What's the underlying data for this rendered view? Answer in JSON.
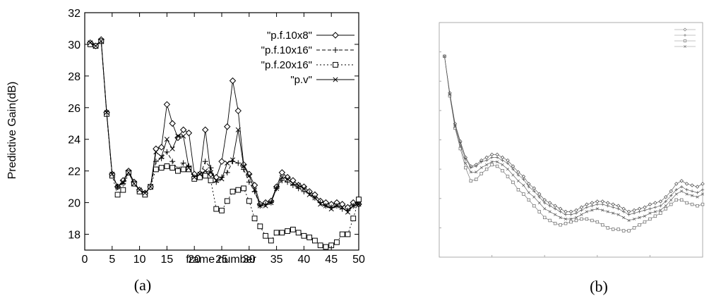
{
  "charts": [
    {
      "caption": "(a)",
      "chart_data": {
        "type": "line",
        "xlabel": "frame number",
        "ylabel": "Predictive Gain(dB)",
        "xlim": [
          0,
          50
        ],
        "ylim": [
          17,
          32
        ],
        "xticks": [
          "0",
          "5",
          "10",
          "15",
          "20",
          "25",
          "30",
          "35",
          "40",
          "45",
          "50"
        ],
        "yticks": [
          "18",
          "20",
          "22",
          "24",
          "26",
          "28",
          "30",
          "32"
        ],
        "legend": "top-right",
        "series": [
          {
            "name": "\"p.f.10x8\"",
            "marker": "diamond",
            "x": [
              1,
              2,
              3,
              4,
              5,
              6,
              7,
              8,
              9,
              10,
              11,
              12,
              13,
              14,
              15,
              16,
              17,
              18,
              19,
              20,
              21,
              22,
              23,
              24,
              25,
              26,
              27,
              28,
              29,
              30,
              31,
              32,
              33,
              34,
              35,
              36,
              37,
              38,
              39,
              40,
              41,
              42,
              43,
              44,
              45,
              46,
              47,
              48,
              49,
              50
            ],
            "y": [
              30.1,
              29.9,
              30.3,
              25.7,
              21.8,
              21.0,
              21.4,
              22.0,
              21.3,
              20.8,
              20.6,
              21.0,
              23.4,
              23.5,
              26.2,
              25.0,
              24.1,
              24.6,
              24.4,
              21.8,
              21.8,
              24.6,
              21.8,
              21.6,
              22.6,
              24.8,
              27.7,
              25.8,
              22.4,
              21.8,
              21.1,
              19.9,
              20.0,
              20.1,
              21.0,
              21.9,
              21.6,
              21.4,
              21.1,
              21.0,
              20.7,
              20.5,
              20.1,
              20.0,
              19.9,
              20.0,
              19.9,
              19.7,
              20.0,
              19.9
            ]
          },
          {
            "name": "\"p.f.10x16\"",
            "marker": "plus",
            "x": [
              1,
              2,
              3,
              4,
              5,
              6,
              7,
              8,
              9,
              10,
              11,
              12,
              13,
              14,
              15,
              16,
              17,
              18,
              19,
              20,
              21,
              22,
              23,
              24,
              25,
              26,
              27,
              28,
              29,
              30,
              31,
              32,
              33,
              34,
              35,
              36,
              37,
              38,
              39,
              40,
              41,
              42,
              43,
              44,
              45,
              46,
              47,
              48,
              49,
              50
            ],
            "y": [
              30.0,
              29.9,
              30.2,
              25.6,
              21.7,
              21.0,
              21.2,
              21.9,
              21.2,
              20.7,
              20.6,
              21.0,
              22.6,
              22.8,
              23.2,
              22.6,
              22.1,
              22.5,
              22.3,
              21.6,
              21.7,
              22.6,
              22.2,
              21.3,
              21.6,
              21.9,
              22.6,
              22.5,
              22.1,
              21.3,
              20.7,
              19.8,
              19.9,
              20.0,
              20.9,
              21.4,
              21.3,
              21.1,
              20.9,
              20.7,
              20.6,
              20.3,
              20.0,
              19.8,
              19.7,
              19.8,
              19.6,
              19.5,
              19.8,
              19.9
            ]
          },
          {
            "name": "\"p.f.20x16\"",
            "marker": "square",
            "x": [
              1,
              2,
              3,
              4,
              5,
              6,
              7,
              8,
              9,
              10,
              11,
              12,
              13,
              14,
              15,
              16,
              17,
              18,
              19,
              20,
              21,
              22,
              23,
              24,
              25,
              26,
              27,
              28,
              29,
              30,
              31,
              32,
              33,
              34,
              35,
              36,
              37,
              38,
              39,
              40,
              41,
              42,
              43,
              44,
              45,
              46,
              47,
              48,
              49,
              50
            ],
            "y": [
              30.0,
              29.9,
              30.2,
              25.6,
              21.7,
              20.5,
              20.8,
              21.9,
              21.2,
              20.7,
              20.5,
              21.0,
              22.1,
              22.2,
              22.3,
              22.2,
              22.0,
              22.1,
              22.1,
              21.5,
              21.6,
              21.7,
              21.4,
              19.6,
              19.5,
              20.1,
              20.7,
              20.8,
              20.9,
              20.1,
              19.0,
              18.5,
              17.9,
              17.6,
              18.1,
              18.1,
              18.2,
              18.3,
              18.1,
              17.9,
              17.8,
              17.6,
              17.3,
              17.2,
              17.3,
              17.5,
              18.0,
              18.0,
              19.0,
              20.2
            ]
          },
          {
            "name": "\"p.v\"",
            "marker": "cross",
            "x": [
              1,
              2,
              3,
              4,
              5,
              6,
              7,
              8,
              9,
              10,
              11,
              12,
              13,
              14,
              15,
              16,
              17,
              18,
              19,
              20,
              21,
              22,
              23,
              24,
              25,
              26,
              27,
              28,
              29,
              30,
              31,
              32,
              33,
              34,
              35,
              36,
              37,
              38,
              39,
              40,
              41,
              42,
              43,
              44,
              45,
              46,
              47,
              48,
              49,
              50
            ],
            "y": [
              30.1,
              29.9,
              30.2,
              25.7,
              21.8,
              21.0,
              21.3,
              21.9,
              21.2,
              20.8,
              20.6,
              21.0,
              23.2,
              22.9,
              24.0,
              23.4,
              24.2,
              24.2,
              22.2,
              21.6,
              21.8,
              22.0,
              21.9,
              21.4,
              21.5,
              22.5,
              22.7,
              24.6,
              22.3,
              21.7,
              20.8,
              19.8,
              19.8,
              20.0,
              20.9,
              21.6,
              21.5,
              21.2,
              21.1,
              20.9,
              20.5,
              20.3,
              19.9,
              19.8,
              19.6,
              19.8,
              19.7,
              19.4,
              19.8,
              19.9
            ]
          }
        ]
      }
    },
    {
      "caption": "(b)",
      "chart_data": {
        "type": "line",
        "xlim": [
          0,
          50
        ],
        "ylim": [
          16,
          32
        ],
        "legend": "top-right",
        "series": [
          {
            "marker": "diamond",
            "x": [
              1,
              2,
              3,
              4,
              5,
              6,
              7,
              8,
              9,
              10,
              11,
              12,
              13,
              14,
              15,
              16,
              17,
              18,
              19,
              20,
              21,
              22,
              23,
              24,
              25,
              26,
              27,
              28,
              29,
              30,
              31,
              32,
              33,
              34,
              35,
              36,
              37,
              38,
              39,
              40,
              41,
              42,
              43,
              44,
              45,
              46,
              47,
              48,
              49,
              50
            ],
            "y": [
              29.7,
              27.2,
              25.1,
              23.9,
              22.8,
              22.2,
              22.3,
              22.6,
              22.8,
              23.0,
              23.0,
              22.8,
              22.6,
              22.2,
              21.8,
              21.5,
              21.0,
              20.7,
              20.3,
              19.9,
              19.7,
              19.5,
              19.3,
              19.1,
              19.1,
              19.2,
              19.4,
              19.6,
              19.7,
              19.8,
              19.8,
              19.7,
              19.6,
              19.5,
              19.3,
              19.1,
              19.2,
              19.3,
              19.4,
              19.6,
              19.7,
              19.8,
              20.1,
              20.5,
              21.0,
              21.2,
              21.0,
              20.9,
              20.8,
              21.0
            ]
          },
          {
            "marker": "plus",
            "x": [
              1,
              2,
              3,
              4,
              5,
              6,
              7,
              8,
              9,
              10,
              11,
              12,
              13,
              14,
              15,
              16,
              17,
              18,
              19,
              20,
              21,
              22,
              23,
              24,
              25,
              26,
              27,
              28,
              29,
              30,
              31,
              32,
              33,
              34,
              35,
              36,
              37,
              38,
              39,
              40,
              41,
              42,
              43,
              44,
              45,
              46,
              47,
              48,
              49,
              50
            ],
            "y": [
              29.7,
              27.1,
              25.0,
              23.8,
              22.7,
              22.1,
              22.2,
              22.5,
              22.6,
              22.8,
              22.8,
              22.6,
              22.4,
              22.0,
              21.6,
              21.3,
              20.8,
              20.5,
              20.1,
              19.7,
              19.5,
              19.3,
              19.1,
              18.9,
              18.9,
              19.0,
              19.2,
              19.4,
              19.5,
              19.6,
              19.6,
              19.5,
              19.4,
              19.3,
              19.1,
              18.9,
              19.0,
              19.1,
              19.2,
              19.3,
              19.4,
              19.5,
              19.8,
              20.2,
              20.6,
              20.8,
              20.6,
              20.5,
              20.4,
              20.6
            ]
          },
          {
            "marker": "square",
            "x": [
              1,
              2,
              3,
              4,
              5,
              6,
              7,
              8,
              9,
              10,
              11,
              12,
              13,
              14,
              15,
              16,
              17,
              18,
              19,
              20,
              21,
              22,
              23,
              24,
              25,
              26,
              27,
              28,
              29,
              30,
              31,
              32,
              33,
              34,
              35,
              36,
              37,
              38,
              39,
              40,
              41,
              42,
              43,
              44,
              45,
              46,
              47,
              48,
              49,
              50
            ],
            "y": [
              29.7,
              27.0,
              24.8,
              23.4,
              22.1,
              21.2,
              21.3,
              21.7,
              22.0,
              22.3,
              22.2,
              21.9,
              21.5,
              21.1,
              20.6,
              20.3,
              19.9,
              19.5,
              19.1,
              18.7,
              18.5,
              18.3,
              18.2,
              18.3,
              18.4,
              18.5,
              18.6,
              18.6,
              18.5,
              18.4,
              18.2,
              18.0,
              17.9,
              17.9,
              17.8,
              17.8,
              18.0,
              18.2,
              18.4,
              18.6,
              18.8,
              19.0,
              19.3,
              19.6,
              19.9,
              19.9,
              19.7,
              19.6,
              19.5,
              19.6
            ]
          },
          {
            "marker": "cross",
            "x": [
              1,
              2,
              3,
              4,
              5,
              6,
              7,
              8,
              9,
              10,
              11,
              12,
              13,
              14,
              15,
              16,
              17,
              18,
              19,
              20,
              21,
              22,
              23,
              24,
              25,
              26,
              27,
              28,
              29,
              30,
              31,
              32,
              33,
              34,
              35,
              36,
              37,
              38,
              39,
              40,
              41,
              42,
              43,
              44,
              45,
              46,
              47,
              48,
              49,
              50
            ],
            "y": [
              29.7,
              27.1,
              24.9,
              23.6,
              22.4,
              21.8,
              21.8,
              22.1,
              22.3,
              22.5,
              22.5,
              22.3,
              22.0,
              21.6,
              21.2,
              20.9,
              20.4,
              20.1,
              19.7,
              19.3,
              19.1,
              18.9,
              18.7,
              18.6,
              18.6,
              18.7,
              18.9,
              19.1,
              19.2,
              19.3,
              19.2,
              19.1,
              19.0,
              18.9,
              18.7,
              18.5,
              18.6,
              18.7,
              18.8,
              19.0,
              19.1,
              19.2,
              19.5,
              19.9,
              20.3,
              20.5,
              20.3,
              20.2,
              20.1,
              20.3
            ]
          }
        ]
      }
    }
  ]
}
